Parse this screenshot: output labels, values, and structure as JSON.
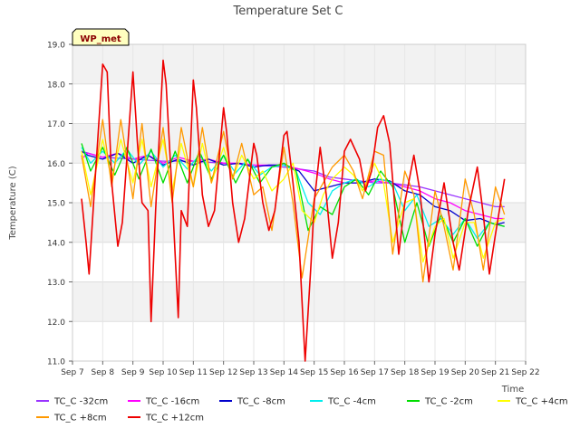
{
  "chart_data": {
    "type": "line",
    "title": "Temperature Set C",
    "xlabel": "Time",
    "ylabel": "Temperature (C)",
    "ylim": [
      11.0,
      19.0
    ],
    "y_ticks": [
      11.0,
      12.0,
      13.0,
      14.0,
      15.0,
      16.0,
      17.0,
      18.0,
      19.0
    ],
    "x_ticks": [
      "Sep 7",
      "Sep 8",
      "Sep 9",
      "Sep 10",
      "Sep 11",
      "Sep 12",
      "Sep 13",
      "Sep 14",
      "Sep 15",
      "Sep 16",
      "Sep 17",
      "Sep 18",
      "Sep 19",
      "Sep 20",
      "Sep 21",
      "Sep 22"
    ],
    "xlim": [
      7,
      22
    ],
    "x_unit": "day of September",
    "grid": true,
    "background_bands": "alternating light gray",
    "annotation": {
      "text": "WP_met",
      "position": "top-left",
      "box_color": "#ffffc0",
      "text_color": "#8b0000"
    },
    "legend": {
      "position": "bottom"
    },
    "series": [
      {
        "name": "TC_C -32cm",
        "color": "#9933ff",
        "x": [
          7.3,
          8,
          9,
          10,
          11,
          12,
          13,
          14,
          14.5,
          15,
          15.5,
          16,
          16.5,
          17,
          17.5,
          18,
          18.5,
          19,
          19.5,
          20,
          20.5,
          21,
          21.3
        ],
        "y": [
          16.3,
          16.15,
          16.1,
          16.05,
          16.05,
          16.0,
          15.95,
          15.9,
          15.85,
          15.8,
          15.65,
          15.6,
          15.55,
          15.5,
          15.5,
          15.45,
          15.4,
          15.3,
          15.2,
          15.1,
          15.0,
          14.9,
          14.9
        ]
      },
      {
        "name": "TC_C -16cm",
        "color": "#ff00ff",
        "x": [
          7.3,
          7.5,
          8,
          8.5,
          9,
          9.5,
          10,
          10.5,
          11,
          11.5,
          12,
          12.5,
          13,
          13.5,
          14,
          14.5,
          15,
          15.5,
          16,
          16.5,
          17,
          17.5,
          18,
          18.5,
          19,
          19.5,
          20,
          20.5,
          21,
          21.3
        ],
        "y": [
          16.1,
          16.25,
          16.15,
          16.25,
          16.1,
          16.2,
          16.0,
          16.15,
          16.05,
          16.1,
          16.0,
          16.0,
          15.95,
          15.95,
          15.95,
          15.85,
          15.75,
          15.6,
          15.5,
          15.5,
          15.55,
          15.5,
          15.4,
          15.3,
          15.1,
          15.0,
          14.8,
          14.7,
          14.6,
          14.6
        ]
      },
      {
        "name": "TC_C -8cm",
        "color": "#0000cc",
        "x": [
          7.3,
          7.5,
          8,
          8.5,
          9,
          9.5,
          10,
          10.5,
          11,
          11.5,
          12,
          12.5,
          13,
          13.5,
          14,
          14.5,
          15,
          15.5,
          16,
          16.5,
          17,
          17.5,
          18,
          18.5,
          19,
          19.5,
          20,
          20.5,
          21,
          21.3
        ],
        "y": [
          16.3,
          16.2,
          16.1,
          16.25,
          16.0,
          16.2,
          15.95,
          16.1,
          15.95,
          16.1,
          15.95,
          16.0,
          15.9,
          15.95,
          15.95,
          15.8,
          15.3,
          15.4,
          15.5,
          15.5,
          15.6,
          15.55,
          15.3,
          15.2,
          14.9,
          14.8,
          14.55,
          14.6,
          14.45,
          14.5
        ]
      },
      {
        "name": "TC_C -4cm",
        "color": "#00eeee",
        "x": [
          7.3,
          7.6,
          8,
          8.4,
          8.8,
          9.2,
          9.6,
          10,
          10.4,
          10.8,
          11.2,
          11.6,
          12,
          12.4,
          12.8,
          13.2,
          13.6,
          14,
          14.4,
          14.8,
          15.2,
          15.6,
          16,
          16.4,
          16.8,
          17.2,
          17.6,
          18,
          18.4,
          18.8,
          19.2,
          19.6,
          20,
          20.4,
          20.8,
          21.3
        ],
        "y": [
          16.4,
          16.0,
          16.3,
          16.0,
          16.35,
          15.95,
          16.3,
          15.9,
          16.2,
          15.85,
          16.2,
          15.8,
          16.2,
          15.75,
          16.1,
          15.7,
          15.9,
          15.95,
          15.8,
          15.0,
          14.7,
          15.3,
          15.5,
          15.6,
          15.4,
          15.6,
          15.5,
          14.8,
          15.2,
          14.4,
          14.6,
          14.2,
          14.6,
          14.1,
          14.5,
          14.4
        ]
      },
      {
        "name": "TC_C -2cm",
        "color": "#00dd00",
        "x": [
          7.3,
          7.6,
          8,
          8.4,
          8.8,
          9.2,
          9.6,
          10,
          10.4,
          10.8,
          11.2,
          11.6,
          12,
          12.4,
          12.8,
          13.2,
          13.6,
          14,
          14.4,
          14.8,
          15.2,
          15.6,
          16,
          16.4,
          16.8,
          17.2,
          17.6,
          18,
          18.4,
          18.8,
          19.2,
          19.6,
          20,
          20.4,
          20.8,
          21.3
        ],
        "y": [
          16.5,
          15.8,
          16.4,
          15.7,
          16.4,
          15.6,
          16.35,
          15.5,
          16.3,
          15.5,
          16.3,
          15.6,
          16.2,
          15.5,
          16.1,
          15.5,
          15.9,
          16.0,
          15.8,
          14.3,
          14.9,
          14.7,
          15.4,
          15.6,
          15.2,
          15.8,
          15.4,
          14.0,
          15.0,
          13.9,
          14.7,
          14.0,
          14.6,
          13.9,
          14.5,
          14.4
        ]
      },
      {
        "name": "TC_C +4cm",
        "color": "#ffff00",
        "x": [
          7.3,
          7.6,
          8,
          8.3,
          8.6,
          9,
          9.3,
          9.6,
          10,
          10.3,
          10.6,
          11,
          11.3,
          11.6,
          12,
          12.3,
          12.6,
          13,
          13.3,
          13.6,
          14,
          14.3,
          14.6,
          15,
          15.3,
          15.6,
          16,
          16.3,
          16.6,
          17,
          17.3,
          17.6,
          18,
          18.3,
          18.6,
          19,
          19.3,
          19.6,
          20,
          20.3,
          20.6,
          21,
          21.3
        ],
        "y": [
          16.3,
          15.2,
          16.6,
          15.6,
          16.6,
          15.5,
          16.6,
          15.4,
          16.6,
          15.3,
          16.5,
          15.4,
          16.5,
          15.5,
          16.4,
          15.6,
          16.2,
          15.6,
          15.8,
          15.3,
          15.6,
          16.0,
          14.8,
          14.5,
          15.2,
          15.6,
          15.9,
          15.7,
          15.3,
          16.0,
          15.5,
          14.0,
          15.0,
          15.1,
          13.5,
          14.4,
          14.6,
          13.6,
          14.5,
          14.5,
          13.6,
          14.5,
          14.6
        ]
      },
      {
        "name": "TC_C +8cm",
        "color": "#ff9900",
        "x": [
          7.3,
          7.6,
          8,
          8.3,
          8.6,
          9,
          9.3,
          9.6,
          10,
          10.3,
          10.6,
          11,
          11.3,
          11.6,
          12,
          12.3,
          12.6,
          13,
          13.3,
          13.6,
          14,
          14.3,
          14.6,
          15,
          15.3,
          15.6,
          16,
          16.3,
          16.6,
          17,
          17.3,
          17.6,
          18,
          18.3,
          18.6,
          19,
          19.3,
          19.6,
          20,
          20.3,
          20.6,
          21,
          21.3
        ],
        "y": [
          16.2,
          14.9,
          17.1,
          15.4,
          17.1,
          15.1,
          17.0,
          14.9,
          16.9,
          15.0,
          16.9,
          15.4,
          16.9,
          15.5,
          16.8,
          15.6,
          16.5,
          15.2,
          15.4,
          14.3,
          16.4,
          15.0,
          13.1,
          15.1,
          15.5,
          15.9,
          16.2,
          15.8,
          15.1,
          16.3,
          16.2,
          13.7,
          15.8,
          15.2,
          13.0,
          15.3,
          14.4,
          13.3,
          15.6,
          14.7,
          13.3,
          15.4,
          14.7
        ]
      },
      {
        "name": "TC_C +12cm",
        "color": "#ee0000",
        "x": [
          7.3,
          7.45,
          7.55,
          7.7,
          8.0,
          8.15,
          8.3,
          8.5,
          8.65,
          9.0,
          9.15,
          9.3,
          9.5,
          9.6,
          9.75,
          10.0,
          10.1,
          10.3,
          10.5,
          10.6,
          10.8,
          11.0,
          11.1,
          11.3,
          11.5,
          11.7,
          12.0,
          12.1,
          12.3,
          12.5,
          12.7,
          13.0,
          13.1,
          13.3,
          13.5,
          13.7,
          14.0,
          14.1,
          14.3,
          14.5,
          14.6,
          14.7,
          14.9,
          15.0,
          15.2,
          15.4,
          15.6,
          15.8,
          16.0,
          16.2,
          16.5,
          16.7,
          16.9,
          17.1,
          17.3,
          17.5,
          17.8,
          18.0,
          18.3,
          18.5,
          18.8,
          19.0,
          19.3,
          19.6,
          19.8,
          20.1,
          20.4,
          20.6,
          20.8,
          21.0,
          21.3
        ],
        "y": [
          15.1,
          14.0,
          13.2,
          15.0,
          18.5,
          18.3,
          15.5,
          13.9,
          14.5,
          18.3,
          16.5,
          15.0,
          14.8,
          12.0,
          14.8,
          18.6,
          18.0,
          15.2,
          12.1,
          14.8,
          14.4,
          18.1,
          17.4,
          15.2,
          14.4,
          14.8,
          17.4,
          16.8,
          15.0,
          14.0,
          14.6,
          16.5,
          16.2,
          15.0,
          14.3,
          14.8,
          16.7,
          16.8,
          15.5,
          14.0,
          12.5,
          11.0,
          13.5,
          15.0,
          16.4,
          15.2,
          13.6,
          14.5,
          16.3,
          16.6,
          16.1,
          15.3,
          15.8,
          16.9,
          17.2,
          16.5,
          13.7,
          15.0,
          16.2,
          15.3,
          13.0,
          14.2,
          15.5,
          14.0,
          13.3,
          14.8,
          15.9,
          14.7,
          13.2,
          14.2,
          15.6
        ]
      }
    ]
  }
}
